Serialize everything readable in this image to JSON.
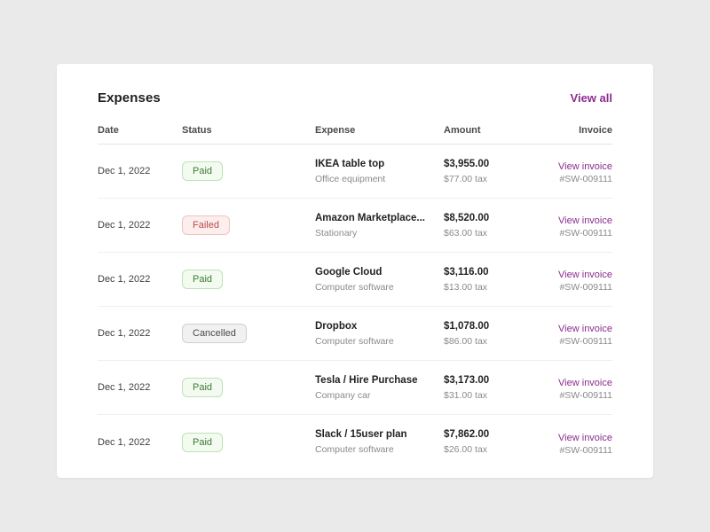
{
  "page": {
    "title": "Expenses",
    "view_all_label": "View all"
  },
  "colors": {
    "accent_purple": "#8b2d8f",
    "badge_paid_text": "#3d7a33",
    "badge_failed_text": "#b94a48",
    "badge_cancelled_text": "#4a4a4a"
  },
  "table": {
    "columns": [
      "Date",
      "Status",
      "Expense",
      "Amount",
      "Invoice"
    ],
    "rows": [
      {
        "date": "Dec 1, 2022",
        "status": "Paid",
        "expense": "IKEA table top",
        "category": "Office equipment",
        "amount": "$3,955.00",
        "tax": "$77.00 tax",
        "invoice_link": "View invoice",
        "invoice_number": "#SW-009111"
      },
      {
        "date": "Dec 1, 2022",
        "status": "Failed",
        "expense": "Amazon Marketplace...",
        "category": "Stationary",
        "amount": "$8,520.00",
        "tax": "$63.00 tax",
        "invoice_link": "View invoice",
        "invoice_number": "#SW-009111"
      },
      {
        "date": "Dec 1, 2022",
        "status": "Paid",
        "expense": "Google Cloud",
        "category": "Computer software",
        "amount": "$3,116.00",
        "tax": "$13.00 tax",
        "invoice_link": "View invoice",
        "invoice_number": "#SW-009111"
      },
      {
        "date": "Dec 1, 2022",
        "status": "Cancelled",
        "expense": "Dropbox",
        "category": "Computer software",
        "amount": "$1,078.00",
        "tax": "$86.00 tax",
        "invoice_link": "View invoice",
        "invoice_number": "#SW-009111"
      },
      {
        "date": "Dec 1, 2022",
        "status": "Paid",
        "expense": "Tesla / Hire Purchase",
        "category": "Company car",
        "amount": "$3,173.00",
        "tax": "$31.00 tax",
        "invoice_link": "View invoice",
        "invoice_number": "#SW-009111"
      },
      {
        "date": "Dec 1, 2022",
        "status": "Paid",
        "expense": "Slack / 15user plan",
        "category": "Computer software",
        "amount": "$7,862.00",
        "tax": "$26.00 tax",
        "invoice_link": "View invoice",
        "invoice_number": "#SW-009111"
      }
    ]
  }
}
